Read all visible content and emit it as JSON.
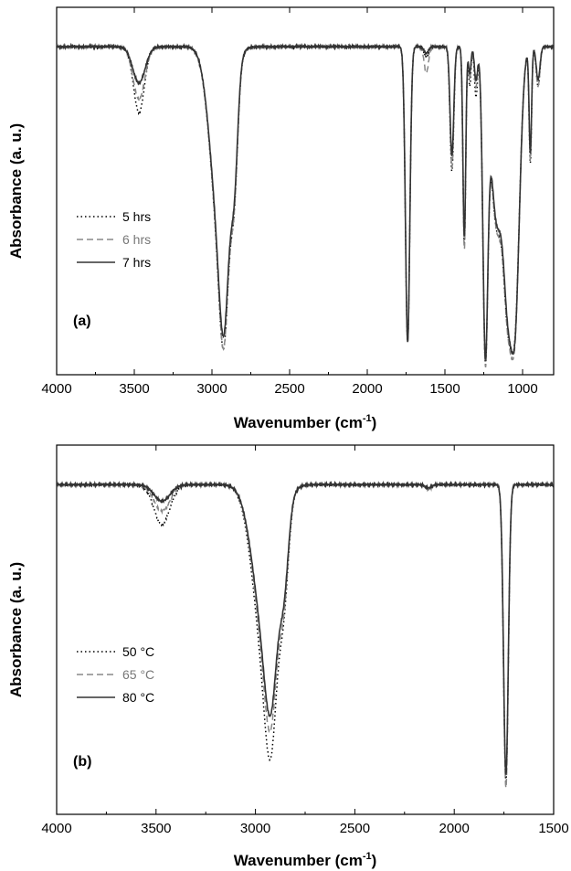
{
  "chart_data": [
    {
      "type": "line",
      "panel_label": "(a)",
      "xlabel": "Wavenumber (cm",
      "xlabel_sup": "-1",
      "xlabel_tail": ")",
      "ylabel": "Absorbance (a. u.)",
      "xlim": [
        4000,
        800
      ],
      "x_reversed": true,
      "xticks": [
        4000,
        3500,
        3000,
        2500,
        2000,
        1500,
        1000
      ],
      "y_tick_labels": false,
      "ylim": [
        0,
        1.12
      ],
      "legend_position": "middle-left",
      "series": [
        {
          "name": "5 hrs",
          "color": "#000000",
          "style": "dotted",
          "baseline": 1.0,
          "bands": [
            [
              3470,
              0.2,
              35
            ],
            [
              2950,
              0.55,
              60
            ],
            [
              2920,
              0.42,
              30
            ],
            [
              2855,
              0.3,
              22
            ],
            [
              1740,
              0.9,
              14
            ],
            [
              1620,
              0.03,
              14
            ],
            [
              1455,
              0.38,
              12
            ],
            [
              1375,
              0.6,
              9
            ],
            [
              1340,
              0.12,
              8
            ],
            [
              1300,
              0.15,
              10
            ],
            [
              1240,
              0.87,
              16
            ],
            [
              1165,
              0.55,
              40
            ],
            [
              1100,
              0.5,
              25
            ],
            [
              1050,
              0.82,
              30
            ],
            [
              950,
              0.35,
              8
            ],
            [
              900,
              0.12,
              12
            ]
          ]
        },
        {
          "name": "6 hrs",
          "color": "#888888",
          "style": "dashed",
          "baseline": 1.0,
          "bands": [
            [
              3470,
              0.16,
              38
            ],
            [
              2950,
              0.55,
              60
            ],
            [
              2920,
              0.42,
              30
            ],
            [
              2855,
              0.3,
              22
            ],
            [
              1740,
              0.9,
              14
            ],
            [
              1620,
              0.08,
              14
            ],
            [
              1455,
              0.37,
              12
            ],
            [
              1375,
              0.62,
              9
            ],
            [
              1340,
              0.1,
              8
            ],
            [
              1300,
              0.12,
              10
            ],
            [
              1240,
              0.88,
              16
            ],
            [
              1165,
              0.55,
              40
            ],
            [
              1100,
              0.5,
              25
            ],
            [
              1050,
              0.84,
              30
            ],
            [
              950,
              0.34,
              8
            ],
            [
              900,
              0.12,
              12
            ]
          ]
        },
        {
          "name": "7 hrs",
          "color": "#333333",
          "style": "solid",
          "baseline": 1.0,
          "bands": [
            [
              3470,
              0.11,
              40
            ],
            [
              2950,
              0.53,
              60
            ],
            [
              2920,
              0.4,
              30
            ],
            [
              2855,
              0.28,
              22
            ],
            [
              1740,
              0.9,
              14
            ],
            [
              1620,
              0.02,
              14
            ],
            [
              1455,
              0.33,
              12
            ],
            [
              1375,
              0.58,
              9
            ],
            [
              1340,
              0.08,
              8
            ],
            [
              1300,
              0.1,
              10
            ],
            [
              1240,
              0.86,
              16
            ],
            [
              1165,
              0.53,
              40
            ],
            [
              1100,
              0.48,
              25
            ],
            [
              1050,
              0.83,
              30
            ],
            [
              950,
              0.32,
              8
            ],
            [
              900,
              0.1,
              12
            ]
          ]
        }
      ]
    },
    {
      "type": "line",
      "panel_label": "(b)",
      "xlabel": "Wavenumber (cm",
      "xlabel_sup": "-1",
      "xlabel_tail": ")",
      "ylabel": "Absorbance (a. u.)",
      "xlim": [
        4000,
        1500
      ],
      "x_reversed": true,
      "xticks": [
        4000,
        3500,
        3000,
        2500,
        2000,
        1500
      ],
      "y_tick_labels": false,
      "ylim": [
        0,
        1.12
      ],
      "legend_position": "middle-left",
      "series": [
        {
          "name": "50 °C",
          "color": "#000000",
          "style": "dotted",
          "baseline": 1.0,
          "bands": [
            [
              3470,
              0.12,
              40
            ],
            [
              2950,
              0.52,
              60
            ],
            [
              2920,
              0.36,
              30
            ],
            [
              2855,
              0.22,
              22
            ],
            [
              2130,
              0.01,
              15
            ],
            [
              1740,
              0.9,
              12
            ]
          ]
        },
        {
          "name": "65 °C",
          "color": "#888888",
          "style": "dashed",
          "baseline": 1.0,
          "bands": [
            [
              3470,
              0.08,
              40
            ],
            [
              2950,
              0.47,
              60
            ],
            [
              2920,
              0.32,
              30
            ],
            [
              2855,
              0.22,
              22
            ],
            [
              2130,
              0.015,
              15
            ],
            [
              1740,
              0.92,
              12
            ]
          ]
        },
        {
          "name": "80 °C",
          "color": "#333333",
          "style": "solid",
          "baseline": 1.0,
          "bands": [
            [
              3470,
              0.05,
              40
            ],
            [
              2950,
              0.44,
              60
            ],
            [
              2920,
              0.3,
              30
            ],
            [
              2855,
              0.2,
              22
            ],
            [
              2130,
              0.01,
              15
            ],
            [
              1740,
              0.88,
              12
            ]
          ]
        }
      ]
    }
  ]
}
